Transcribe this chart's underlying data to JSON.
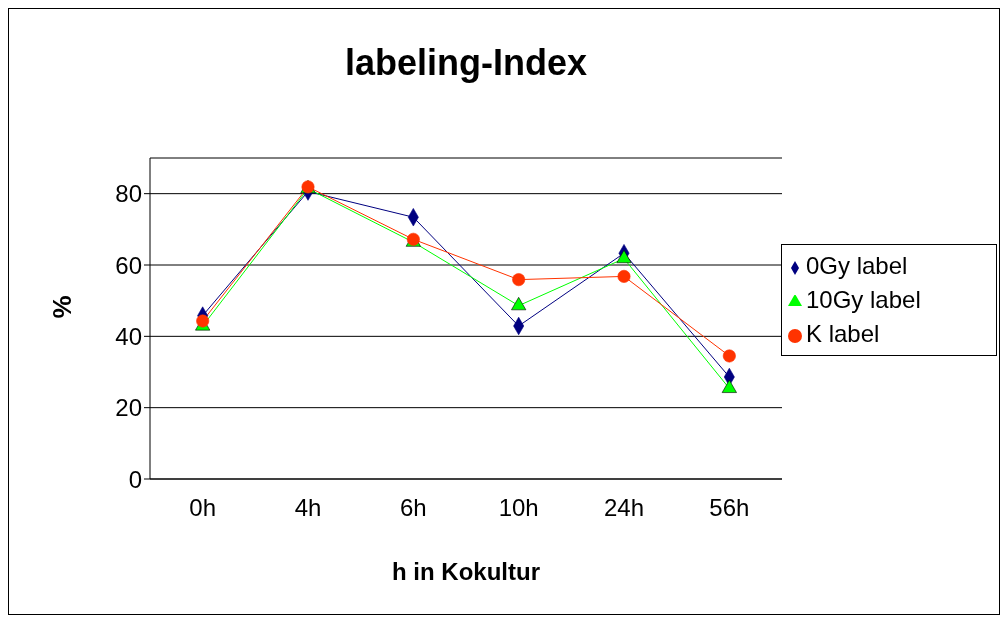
{
  "chart_data": {
    "type": "line",
    "title": "labeling-Index",
    "xlabel": "h in Kokultur",
    "ylabel": "%",
    "categories": [
      "0h",
      "4h",
      "6h",
      "10h",
      "24h",
      "56h"
    ],
    "series": [
      {
        "name": "0Gy label",
        "color": "#000080",
        "marker": "diamond",
        "values": [
          45.8,
          80.6,
          73.4,
          42.9,
          63.3,
          28.6
        ]
      },
      {
        "name": "10Gy label",
        "color": "#00ff00",
        "marker": "triangle",
        "values": [
          42.9,
          81.4,
          66.4,
          48.6,
          61.8,
          25.4
        ]
      },
      {
        "name": "K label",
        "color": "#ff3300",
        "marker": "circle",
        "values": [
          44.3,
          81.9,
          67.2,
          55.9,
          56.8,
          34.5
        ]
      }
    ],
    "ylim": [
      0,
      90
    ],
    "yticks": [
      0,
      20,
      40,
      60,
      80
    ],
    "grid": "y",
    "legend": "right"
  }
}
